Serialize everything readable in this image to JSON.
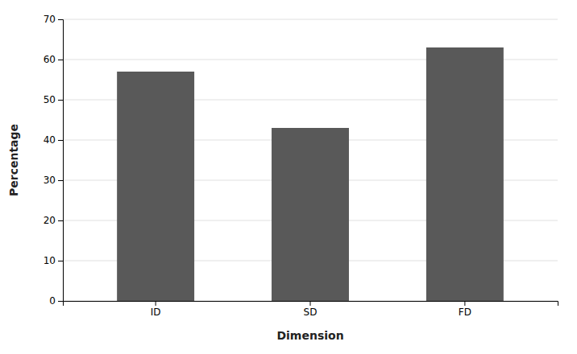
{
  "chart_data": {
    "type": "bar",
    "categories": [
      "ID",
      "SD",
      "FD"
    ],
    "values": [
      57,
      43,
      63
    ],
    "color": "#595959",
    "xlabel": "Dimension",
    "ylabel": "Percentage",
    "ylim": [
      0,
      70
    ],
    "yticks": [
      0,
      10,
      20,
      30,
      40,
      50,
      60,
      70
    ],
    "grid": true
  }
}
